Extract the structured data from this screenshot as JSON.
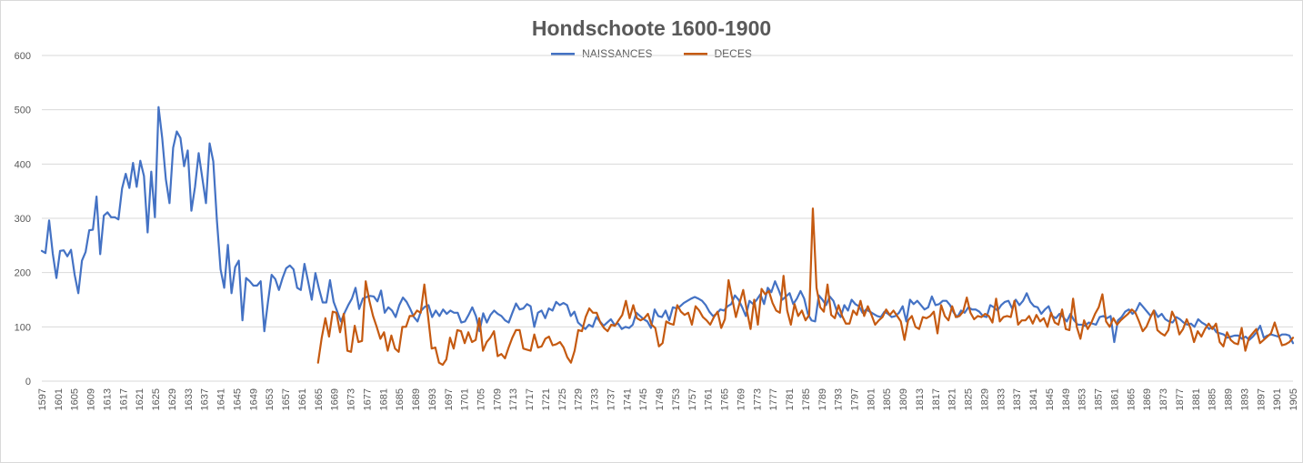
{
  "chart_data": {
    "type": "line",
    "title": "Hondschoote 1600-1900",
    "legend_position": "top",
    "grid": true,
    "ylim": [
      0,
      600
    ],
    "yticks": [
      0,
      100,
      200,
      300,
      400,
      500,
      600
    ],
    "xlim": [
      1597,
      1905
    ],
    "xtick_start": 1597,
    "xtick_step": 4,
    "xtick_end": 1905,
    "series": [
      {
        "name": "NAISSANCES",
        "color": "#4472C4",
        "x_start": 1597,
        "values": [
          240,
          236,
          296,
          235,
          190,
          240,
          241,
          230,
          242,
          196,
          162,
          222,
          238,
          278,
          279,
          340,
          234,
          305,
          311,
          302,
          302,
          298,
          355,
          382,
          356,
          402,
          358,
          406,
          378,
          274,
          386,
          302,
          505,
          448,
          372,
          328,
          430,
          460,
          448,
          396,
          425,
          314,
          358,
          420,
          374,
          328,
          438,
          405,
          296,
          206,
          172,
          251,
          162,
          210,
          222,
          112,
          190,
          184,
          176,
          176,
          184,
          92,
          146,
          196,
          188,
          168,
          190,
          208,
          213,
          206,
          172,
          168,
          216,
          184,
          150,
          199,
          170,
          145,
          145,
          186,
          146,
          128,
          110,
          126,
          140,
          152,
          172,
          133,
          152,
          155,
          157,
          156,
          147,
          167,
          126,
          136,
          130,
          118,
          140,
          154,
          146,
          133,
          118,
          110,
          130,
          137,
          140,
          118,
          130,
          120,
          132,
          124,
          130,
          126,
          126,
          108,
          110,
          122,
          136,
          120,
          92,
          125,
          108,
          122,
          130,
          124,
          120,
          112,
          108,
          126,
          143,
          132,
          134,
          142,
          138,
          100,
          126,
          130,
          116,
          134,
          130,
          146,
          140,
          144,
          140,
          120,
          128,
          108,
          102,
          96,
          104,
          100,
          118,
          110,
          102,
          108,
          114,
          104,
          106,
          96,
          100,
          98,
          104,
          126,
          120,
          114,
          110,
          98,
          132,
          120,
          118,
          130,
          112,
          136,
          134,
          138,
          144,
          148,
          152,
          155,
          152,
          148,
          140,
          128,
          120,
          124,
          132,
          130,
          138,
          142,
          158,
          150,
          136,
          120,
          148,
          142,
          150,
          160,
          142,
          172,
          164,
          184,
          168,
          150,
          156,
          162,
          142,
          152,
          166,
          152,
          124,
          112,
          110,
          158,
          150,
          140,
          156,
          148,
          128,
          118,
          140,
          130,
          150,
          142,
          138,
          126,
          132,
          128,
          124,
          120,
          118,
          128,
          124,
          118,
          120,
          126,
          138,
          110,
          150,
          142,
          148,
          140,
          132,
          136,
          156,
          140,
          142,
          148,
          148,
          140,
          126,
          118,
          130,
          126,
          136,
          132,
          132,
          128,
          120,
          118,
          140,
          136,
          130,
          140,
          146,
          148,
          134,
          150,
          140,
          148,
          162,
          146,
          138,
          136,
          124,
          132,
          138,
          120,
          116,
          124,
          118,
          110,
          124,
          112,
          104,
          104,
          102,
          108,
          106,
          104,
          118,
          120,
          116,
          120,
          72,
          112,
          118,
          128,
          132,
          124,
          130,
          144,
          136,
          128,
          120,
          130,
          118,
          124,
          114,
          110,
          108,
          118,
          114,
          108,
          104,
          106,
          100,
          114,
          108,
          104,
          96,
          100,
          90,
          88,
          86,
          80,
          82,
          84,
          84,
          78,
          82,
          76,
          82,
          90,
          102,
          80,
          84,
          86,
          84,
          82,
          86,
          86,
          84,
          70
        ],
        "x_end": 1905
      },
      {
        "name": "DECES",
        "color": "#C55A11",
        "x_start": 1665,
        "values": [
          34,
          80,
          116,
          82,
          128,
          126,
          90,
          124,
          56,
          54,
          102,
          72,
          74,
          184,
          148,
          120,
          100,
          78,
          90,
          56,
          84,
          60,
          54,
          100,
          100,
          120,
          120,
          130,
          126,
          178,
          120,
          60,
          62,
          34,
          30,
          40,
          80,
          60,
          94,
          92,
          70,
          90,
          72,
          76,
          116,
          56,
          72,
          80,
          92,
          46,
          50,
          42,
          62,
          80,
          94,
          94,
          60,
          58,
          56,
          86,
          62,
          64,
          78,
          82,
          66,
          68,
          72,
          62,
          44,
          34,
          56,
          94,
          92,
          118,
          134,
          126,
          126,
          108,
          98,
          92,
          104,
          102,
          112,
          122,
          148,
          116,
          140,
          116,
          112,
          116,
          124,
          104,
          98,
          64,
          70,
          110,
          106,
          104,
          140,
          128,
          122,
          126,
          104,
          138,
          130,
          118,
          112,
          104,
          118,
          128,
          98,
          114,
          186,
          152,
          118,
          144,
          168,
          130,
          96,
          150,
          104,
          170,
          160,
          166,
          144,
          130,
          126,
          194,
          130,
          104,
          142,
          120,
          130,
          112,
          122,
          318,
          172,
          136,
          128,
          178,
          122,
          116,
          140,
          120,
          106,
          106,
          130,
          122,
          148,
          120,
          138,
          122,
          104,
          112,
          118,
          132,
          122,
          130,
          120,
          110,
          76,
          112,
          120,
          100,
          96,
          118,
          116,
          120,
          128,
          88,
          140,
          120,
          112,
          138,
          118,
          120,
          128,
          154,
          126,
          114,
          120,
          118,
          124,
          120,
          108,
          152,
          110,
          118,
          120,
          118,
          148,
          104,
          112,
          112,
          120,
          106,
          122,
          110,
          116,
          100,
          126,
          108,
          104,
          132,
          96,
          94,
          152,
          100,
          78,
          112,
          96,
          108,
          124,
          136,
          160,
          110,
          100,
          116,
          104,
          112,
          118,
          124,
          132,
          126,
          110,
          92,
          100,
          116,
          130,
          94,
          88,
          84,
          94,
          128,
          114,
          86,
          96,
          114,
          98,
          72,
          92,
          82,
          96,
          106,
          96,
          106,
          72,
          64,
          90,
          76,
          70,
          68,
          98,
          56,
          80,
          88,
          96,
          70,
          76,
          82,
          88,
          108,
          86,
          66,
          68,
          72,
          80
        ],
        "x_end": 1905
      }
    ]
  }
}
